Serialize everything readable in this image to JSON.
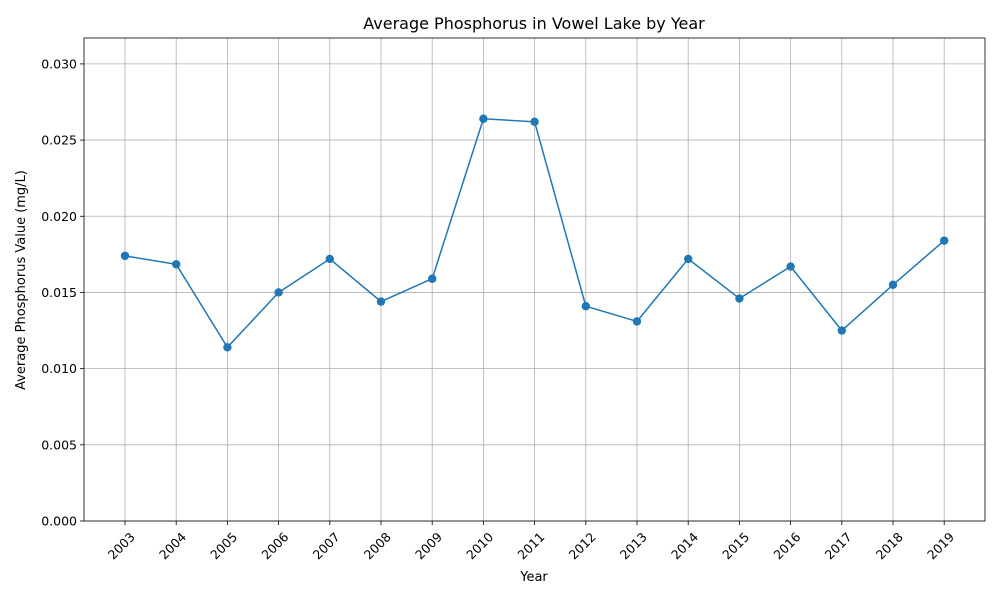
{
  "chart_data": {
    "type": "line",
    "title": "Average Phosphorus in Vowel Lake by Year",
    "xlabel": "Year",
    "ylabel": "Average Phosphorus Value (mg/L)",
    "ylim": [
      0,
      0.0317
    ],
    "yticks": [
      "0.000",
      "0.005",
      "0.010",
      "0.015",
      "0.020",
      "0.025",
      "0.030"
    ],
    "ytick_values": [
      0,
      0.005,
      0.01,
      0.015,
      0.02,
      0.025,
      0.03
    ],
    "grid": true,
    "color": "#1f77b4",
    "categories": [
      "2003",
      "2004",
      "2005",
      "2006",
      "2007",
      "2008",
      "2009",
      "2010",
      "2011",
      "2012",
      "2013",
      "2014",
      "2015",
      "2016",
      "2017",
      "2018",
      "2019"
    ],
    "values": [
      0.0174,
      0.01685,
      0.0114,
      0.015,
      0.0172,
      0.0144,
      0.0159,
      0.0264,
      0.0262,
      0.0141,
      0.0131,
      0.0172,
      0.0146,
      0.0167,
      0.0125,
      0.0155,
      0.0184
    ]
  }
}
